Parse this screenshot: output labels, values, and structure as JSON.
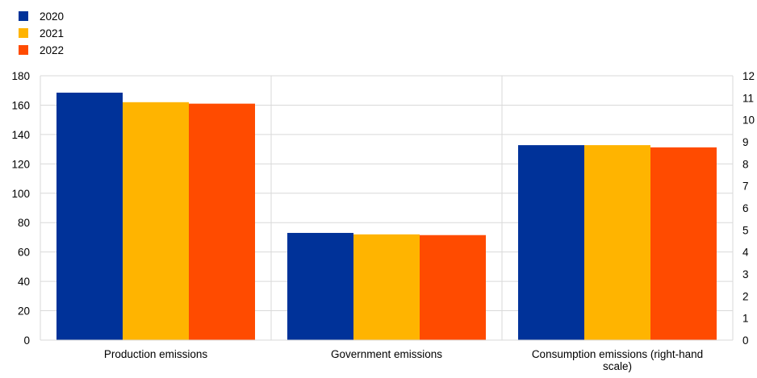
{
  "chart_data": {
    "type": "bar",
    "categories": [
      "Production emissions",
      "Government emissions",
      "Consumption emissions (right-hand scale)"
    ],
    "category_axis": [
      "left",
      "left",
      "right"
    ],
    "series": [
      {
        "name": "2020",
        "color": "#003299",
        "values": [
          168.5,
          73,
          8.85
        ]
      },
      {
        "name": "2021",
        "color": "#FFB400",
        "values": [
          162,
          72,
          8.85
        ]
      },
      {
        "name": "2022",
        "color": "#FF4B00",
        "values": [
          161,
          71.5,
          8.75
        ]
      }
    ],
    "y_left": {
      "min": 0,
      "max": 180,
      "ticks": [
        "0",
        "20",
        "40",
        "60",
        "80",
        "100",
        "120",
        "140",
        "160",
        "180"
      ]
    },
    "y_right": {
      "min": 0,
      "max": 12,
      "ticks": [
        "0",
        "1",
        "2",
        "3",
        "4",
        "5",
        "6",
        "7",
        "8",
        "9",
        "10",
        "11",
        "12"
      ]
    },
    "grid": true,
    "legend_position": "top-left"
  }
}
